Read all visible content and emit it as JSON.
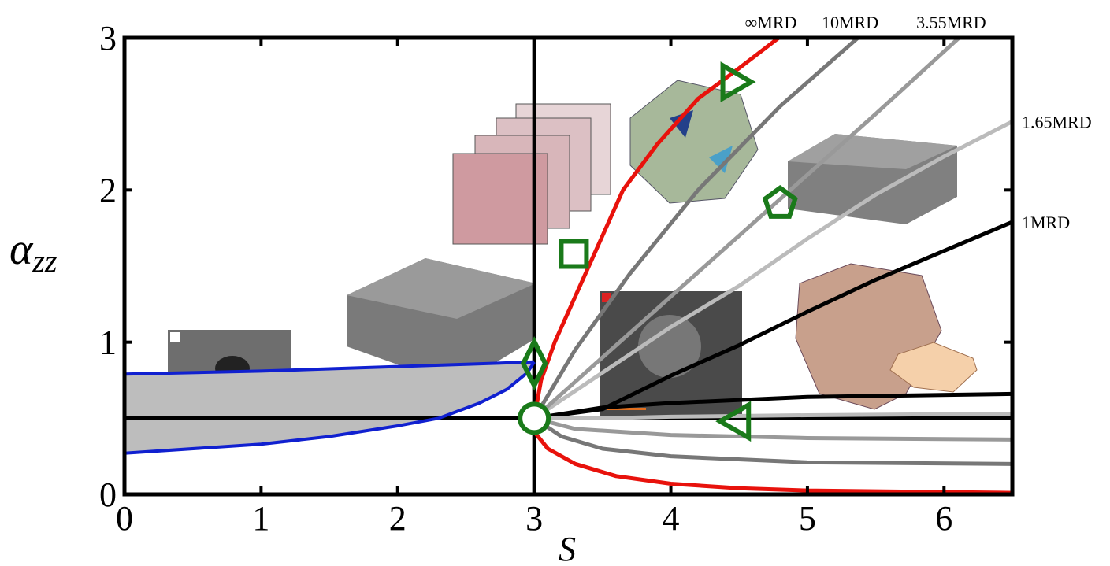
{
  "chart_data": {
    "type": "line",
    "xlabel": "S",
    "ylabel": "α",
    "ylabel_sub": "zz",
    "xlim": [
      0,
      6.5
    ],
    "ylim": [
      0,
      3
    ],
    "xticks": [
      0,
      1,
      2,
      3,
      4,
      5,
      6
    ],
    "yticks": [
      0,
      1,
      2,
      3
    ],
    "series": [
      {
        "name": "∞MRD",
        "color": "#e8120c",
        "x": [
          3,
          3.05,
          3.15,
          3.3,
          3.45,
          3.65,
          3.9,
          4.2,
          4.5,
          4.79
        ],
        "values": [
          0.5,
          0.75,
          1.0,
          1.3,
          1.6,
          2.0,
          2.3,
          2.6,
          2.8,
          3.0
        ],
        "x_lower": [
          3,
          3.01,
          3.1,
          3.3,
          3.6,
          4,
          4.5,
          5,
          6,
          6.5
        ],
        "values_lower": [
          0.5,
          0.4,
          0.3,
          0.2,
          0.12,
          0.07,
          0.04,
          0.025,
          0.015,
          0.01
        ]
      },
      {
        "name": "10MRD",
        "color": "#777777",
        "x": [
          3,
          3.3,
          3.7,
          4.2,
          4.8,
          5.37
        ],
        "values": [
          0.5,
          0.95,
          1.45,
          2.0,
          2.55,
          3.0
        ],
        "x_lower": [
          3,
          3.2,
          3.5,
          4,
          5,
          6.5
        ],
        "values_lower": [
          0.5,
          0.38,
          0.3,
          0.25,
          0.21,
          0.2
        ]
      },
      {
        "name": "3.55MRD",
        "color": "#999999",
        "x": [
          3,
          3.5,
          4,
          4.5,
          5,
          5.5,
          6.11
        ],
        "values": [
          0.5,
          0.9,
          1.3,
          1.7,
          2.1,
          2.5,
          3.0
        ],
        "x_lower": [
          3,
          3.3,
          4,
          5,
          6.5
        ],
        "values_lower": [
          0.5,
          0.43,
          0.39,
          0.37,
          0.36
        ]
      },
      {
        "name": "1.65MRD",
        "color": "#bbbbbb",
        "x": [
          3,
          3.5,
          4,
          4.5,
          5,
          5.5,
          6,
          6.5
        ],
        "values": [
          0.5,
          0.8,
          1.1,
          1.37,
          1.68,
          1.97,
          2.22,
          2.45
        ],
        "x_lower": [
          3,
          3.5,
          4,
          5,
          6.5
        ],
        "values_lower": [
          0.5,
          0.5,
          0.51,
          0.52,
          0.53
        ]
      },
      {
        "name": "1MRD",
        "color": "#000000",
        "x": [
          3,
          3.5,
          4,
          4.5,
          5,
          5.5,
          6,
          6.5
        ],
        "values": [
          0.5,
          0.56,
          0.78,
          0.98,
          1.2,
          1.41,
          1.6,
          1.79
        ],
        "x_lower": [
          3,
          3.5,
          4,
          5,
          6.5
        ],
        "values_lower": [
          0.5,
          0.57,
          0.6,
          0.64,
          0.66
        ]
      }
    ],
    "blue": {
      "color": "#1020d0",
      "x": [
        0,
        1,
        2,
        2.5,
        3
      ],
      "values": [
        0.79,
        0.81,
        0.84,
        0.855,
        0.87
      ],
      "x_lower": [
        0,
        1,
        1.5,
        2,
        2.3,
        2.6,
        2.8,
        2.95,
        3
      ],
      "values_lower": [
        0.27,
        0.33,
        0.38,
        0.45,
        0.5,
        0.6,
        0.69,
        0.8,
        0.87
      ]
    },
    "hline": 0.5,
    "vline": 3,
    "marker_color": "#1a7a1a",
    "markers": [
      {
        "shape": "circle",
        "x": 3,
        "y": 0.5
      },
      {
        "shape": "diamond",
        "x": 3,
        "y": 0.86
      },
      {
        "shape": "square",
        "x": 3.29,
        "y": 1.58
      },
      {
        "shape": "pentagon",
        "x": 4.8,
        "y": 1.91
      },
      {
        "shape": "triangle-right",
        "x": 4.45,
        "y": 2.71
      },
      {
        "shape": "triangle-left",
        "x": 4.5,
        "y": 0.48
      }
    ]
  }
}
